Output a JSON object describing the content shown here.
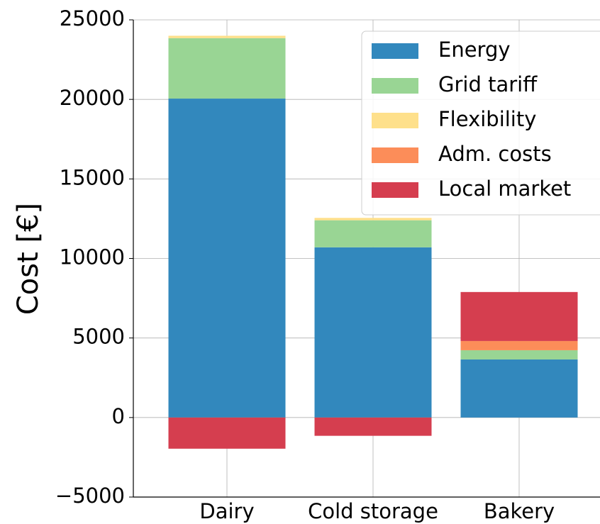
{
  "chart_data": {
    "type": "bar",
    "stacked": true,
    "ylabel": "Cost [€]",
    "categories": [
      "Dairy",
      "Cold storage",
      "Bakery"
    ],
    "series": [
      {
        "name": "Energy",
        "color": "#3288bd",
        "values": [
          20050,
          10700,
          3650
        ]
      },
      {
        "name": "Grid tariff",
        "color": "#99d594",
        "values": [
          3800,
          1700,
          580
        ]
      },
      {
        "name": "Flexibility",
        "color": "#fee08b",
        "values": [
          150,
          150,
          0
        ]
      },
      {
        "name": "Adm. costs",
        "color": "#fc8d59",
        "values": [
          0,
          0,
          580
        ]
      },
      {
        "name": "Local market",
        "color": "#d53e4f",
        "values": [
          -1960,
          -1150,
          3080
        ]
      }
    ],
    "ylim": [
      -5000,
      25000
    ],
    "yticks": [
      {
        "value": -5000,
        "label": "−5000"
      },
      0,
      5000,
      10000,
      15000,
      20000,
      25000
    ],
    "grid": true,
    "legend": "upper right"
  }
}
